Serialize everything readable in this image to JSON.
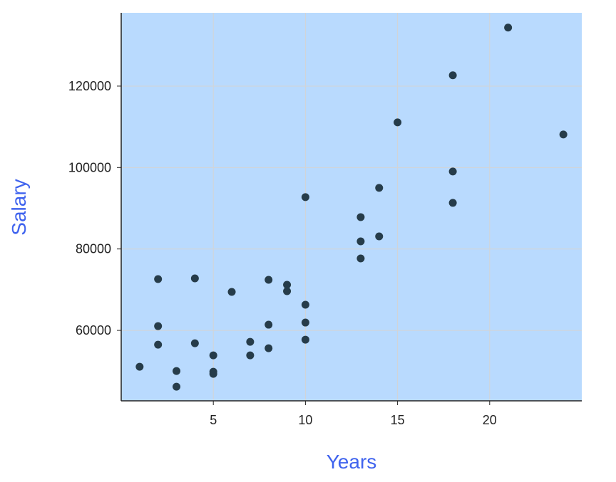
{
  "chart_data": {
    "type": "scatter",
    "title": "",
    "xlabel": "Years",
    "ylabel": "Salary",
    "xlim": [
      0,
      25
    ],
    "ylim": [
      42700,
      138000
    ],
    "xticks": [
      5,
      10,
      15,
      20
    ],
    "yticks": [
      60000,
      80000,
      100000,
      120000
    ],
    "grid": true,
    "colors": {
      "background": "#b9dafe",
      "point": "#263c4a",
      "label": "#3f63ee",
      "grid": "#d4d4d4"
    },
    "points": [
      {
        "x": 1,
        "y": 51075
      },
      {
        "x": 2,
        "y": 72600
      },
      {
        "x": 2,
        "y": 61050
      },
      {
        "x": 2,
        "y": 56500
      },
      {
        "x": 3,
        "y": 50025
      },
      {
        "x": 3,
        "y": 46175
      },
      {
        "x": 4,
        "y": 72775
      },
      {
        "x": 4,
        "y": 56850
      },
      {
        "x": 5,
        "y": 53875
      },
      {
        "x": 5,
        "y": 49850
      },
      {
        "x": 5,
        "y": 49325
      },
      {
        "x": 6,
        "y": 69450
      },
      {
        "x": 7,
        "y": 57200
      },
      {
        "x": 7,
        "y": 53875
      },
      {
        "x": 8,
        "y": 72425
      },
      {
        "x": 8,
        "y": 61400
      },
      {
        "x": 8,
        "y": 55625
      },
      {
        "x": 9,
        "y": 71200
      },
      {
        "x": 9,
        "y": 69625
      },
      {
        "x": 10,
        "y": 92725
      },
      {
        "x": 10,
        "y": 66300
      },
      {
        "x": 10,
        "y": 61925
      },
      {
        "x": 10,
        "y": 57725
      },
      {
        "x": 13,
        "y": 87825
      },
      {
        "x": 13,
        "y": 81875
      },
      {
        "x": 13,
        "y": 77675
      },
      {
        "x": 14,
        "y": 95000
      },
      {
        "x": 14,
        "y": 83100
      },
      {
        "x": 15,
        "y": 111100
      },
      {
        "x": 18,
        "y": 122650
      },
      {
        "x": 18,
        "y": 99025
      },
      {
        "x": 18,
        "y": 91325
      },
      {
        "x": 21,
        "y": 134375
      },
      {
        "x": 24,
        "y": 108125
      }
    ]
  }
}
